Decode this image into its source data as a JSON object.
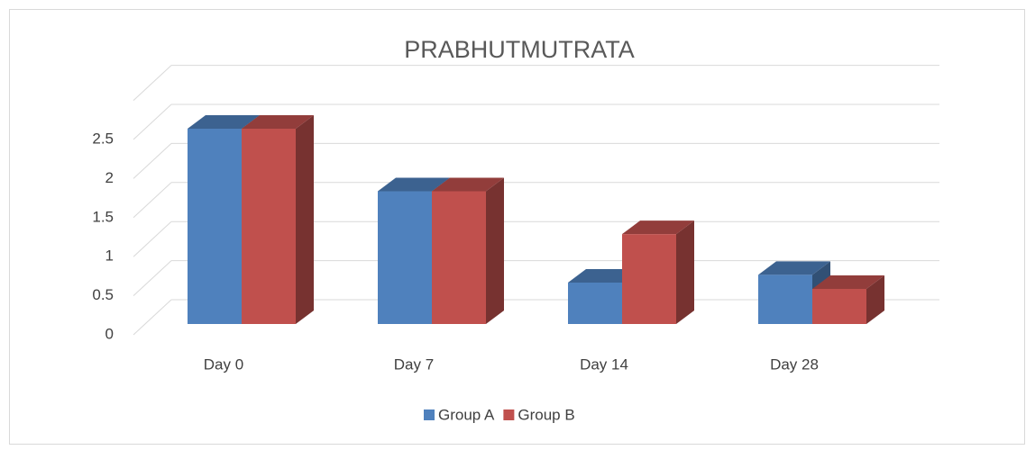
{
  "chart_data": {
    "type": "bar3d",
    "title": "PRABHUTMUTRATA",
    "categories": [
      "Day 0",
      "Day 7",
      "Day 14",
      "Day 28"
    ],
    "series": [
      {
        "name": "Group A",
        "color": "#4f81bd",
        "values": [
          2.5,
          1.7,
          0.53,
          0.63
        ]
      },
      {
        "name": "Group B",
        "color": "#c0504d",
        "values": [
          2.5,
          1.7,
          1.15,
          0.45
        ]
      }
    ],
    "ylim": [
      0,
      3
    ],
    "yticks": [
      0,
      0.5,
      1,
      1.5,
      2,
      2.5
    ],
    "grid": true,
    "legend": "bottom"
  }
}
